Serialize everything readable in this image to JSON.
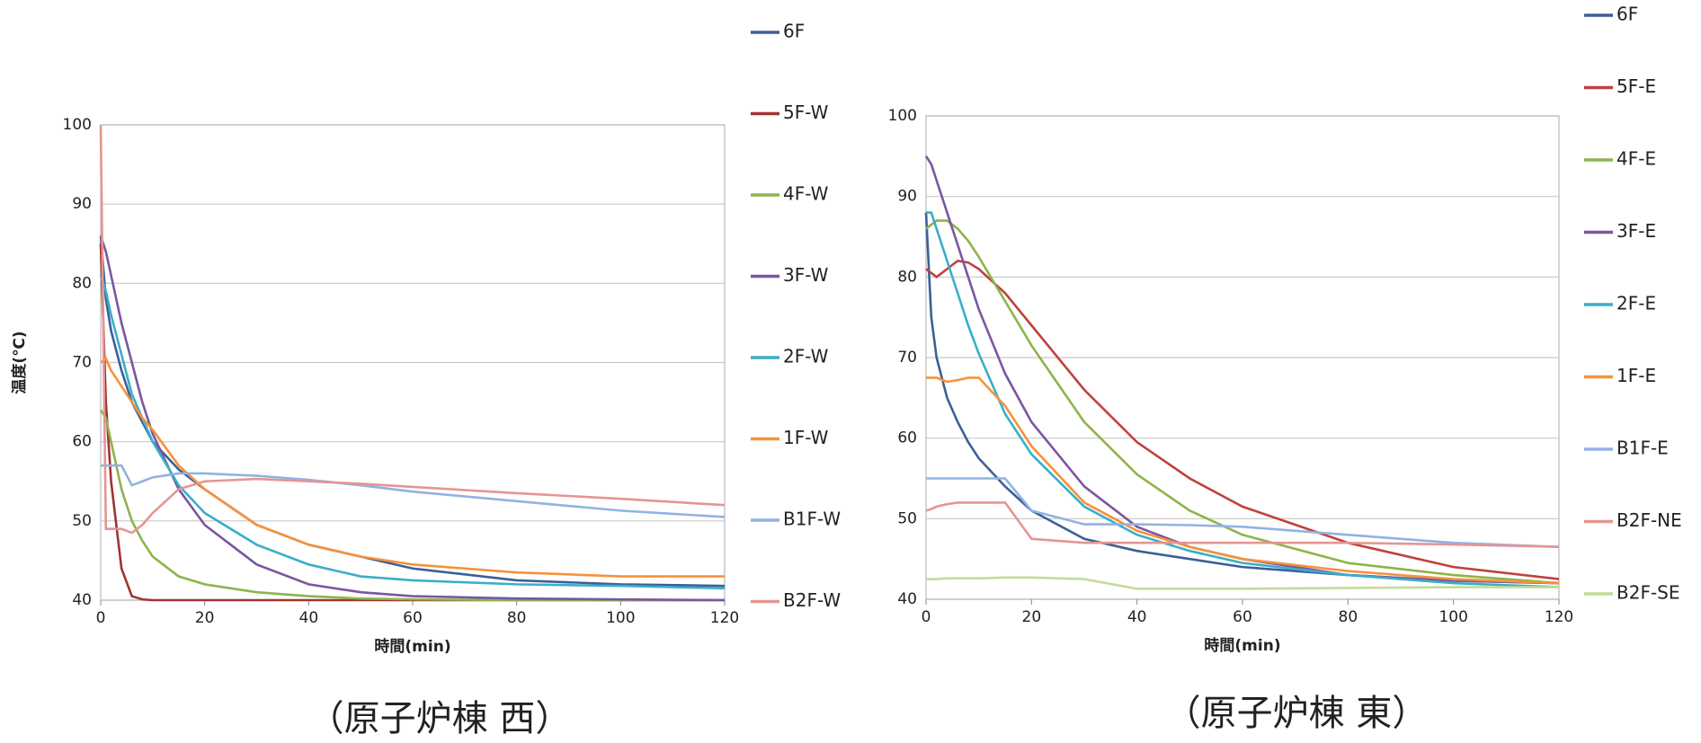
{
  "chart_data": [
    {
      "type": "line",
      "title": "（原子炉棟 西）",
      "xlabel": "時間(min)",
      "ylabel": "温度(℃)",
      "x": [
        0,
        1,
        2,
        4,
        6,
        8,
        10,
        15,
        20,
        30,
        40,
        50,
        60,
        80,
        100,
        120
      ],
      "xlim": [
        0,
        120
      ],
      "xticks": [
        0,
        20,
        40,
        60,
        80,
        100,
        120
      ],
      "ylim": [
        40,
        100
      ],
      "yticks": [
        40,
        50,
        60,
        70,
        80,
        90,
        100
      ],
      "grid": true,
      "series": [
        {
          "name": "6F",
          "color": "#3c5f96",
          "values": [
            86,
            78,
            74,
            69,
            65,
            62.5,
            60,
            56.5,
            54,
            49.5,
            47,
            45.5,
            44,
            42.5,
            42,
            41.8
          ]
        },
        {
          "name": "5F-W",
          "color": "#9e3431",
          "values": [
            85,
            65,
            55,
            44,
            40.5,
            40.1,
            40,
            40,
            40,
            40,
            40,
            40,
            40,
            40,
            40,
            40
          ]
        },
        {
          "name": "4F-W",
          "color": "#8db44b",
          "values": [
            64,
            63,
            60,
            54,
            50,
            47.5,
            45.5,
            43,
            42,
            41,
            40.5,
            40.2,
            40.1,
            40,
            40,
            40
          ]
        },
        {
          "name": "3F-W",
          "color": "#7b56a1",
          "values": [
            86,
            84,
            81,
            75,
            70,
            65,
            61,
            54,
            49.5,
            44.5,
            42,
            41,
            40.5,
            40.2,
            40.1,
            40
          ]
        },
        {
          "name": "2F-W",
          "color": "#3aaec9",
          "values": [
            81,
            79,
            76,
            71,
            66,
            63,
            60,
            54.5,
            51,
            47,
            44.5,
            43,
            42.5,
            42,
            41.8,
            41.5
          ]
        },
        {
          "name": "1F-W",
          "color": "#f6923a",
          "values": [
            70,
            70.5,
            69,
            67,
            65,
            63,
            61.5,
            57,
            54,
            49.5,
            47,
            45.5,
            44.5,
            43.5,
            43,
            43
          ]
        },
        {
          "name": "B1F-W",
          "color": "#92b2e2",
          "values": [
            57,
            57,
            57,
            57,
            54.5,
            55,
            55.5,
            56,
            56,
            55.7,
            55.2,
            54.5,
            53.7,
            52.5,
            51.3,
            50.5
          ]
        },
        {
          "name": "B2F-W",
          "color": "#e59593",
          "values": [
            100,
            49,
            49,
            49,
            48.5,
            49.5,
            51,
            54,
            55,
            55.3,
            55,
            54.7,
            54.3,
            53.5,
            52.8,
            52
          ]
        }
      ]
    },
    {
      "type": "line",
      "title": "（原子炉棟 東）",
      "xlabel": "時間(min)",
      "x": [
        0,
        1,
        2,
        4,
        6,
        8,
        10,
        15,
        20,
        30,
        40,
        50,
        60,
        80,
        100,
        120
      ],
      "xlim": [
        0,
        120
      ],
      "xticks": [
        0,
        20,
        40,
        60,
        80,
        100,
        120
      ],
      "ylim": [
        40,
        100
      ],
      "yticks": [
        40,
        50,
        60,
        70,
        80,
        90,
        100
      ],
      "grid": true,
      "series": [
        {
          "name": "6F",
          "color": "#3c5f96",
          "values": [
            88,
            75,
            70,
            65,
            62,
            59.5,
            57.5,
            54,
            51,
            47.5,
            46,
            45,
            44,
            43,
            42.3,
            42
          ]
        },
        {
          "name": "5F-E",
          "color": "#c0413e",
          "values": [
            81,
            80.5,
            80,
            81,
            82,
            81.8,
            81,
            78,
            74,
            66,
            59.5,
            55,
            51.5,
            47,
            44,
            42.5
          ]
        },
        {
          "name": "4F-E",
          "color": "#8db44b",
          "values": [
            86,
            86.5,
            87,
            87,
            86,
            84.5,
            82.5,
            77,
            71.5,
            62,
            55.5,
            51,
            48,
            44.5,
            43,
            42
          ]
        },
        {
          "name": "3F-E",
          "color": "#7b56a1",
          "values": [
            95,
            94,
            92,
            88,
            84,
            80,
            76,
            68,
            62,
            54,
            49,
            46.5,
            45,
            43,
            42.3,
            42
          ]
        },
        {
          "name": "2F-E",
          "color": "#3aaec9",
          "values": [
            88,
            88,
            86,
            82,
            78,
            74,
            70.5,
            63,
            58,
            51.5,
            48,
            46,
            44.5,
            43,
            42,
            41.5
          ]
        },
        {
          "name": "1F-E",
          "color": "#f6923a",
          "values": [
            67.5,
            67.5,
            67.5,
            67,
            67.2,
            67.5,
            67.5,
            64,
            59,
            52,
            48.5,
            46.5,
            45,
            43.5,
            42.5,
            42
          ]
        },
        {
          "name": "B1F-E",
          "color": "#92b2e2",
          "values": [
            55,
            55,
            55,
            55,
            55,
            55,
            55,
            55,
            51,
            49.3,
            49.3,
            49.2,
            49,
            48,
            47,
            46.5
          ]
        },
        {
          "name": "B2F-NE",
          "color": "#e59593",
          "values": [
            51,
            51.2,
            51.5,
            51.8,
            52,
            52,
            52,
            52,
            47.5,
            47,
            47,
            47,
            47,
            47,
            46.8,
            46.5
          ]
        },
        {
          "name": "B2F-SE",
          "color": "#c3dc96",
          "values": [
            42.5,
            42.5,
            42.5,
            42.6,
            42.6,
            42.6,
            42.6,
            42.7,
            42.7,
            42.5,
            41.3,
            41.3,
            41.3,
            41.4,
            41.5,
            41.5
          ]
        }
      ]
    }
  ]
}
